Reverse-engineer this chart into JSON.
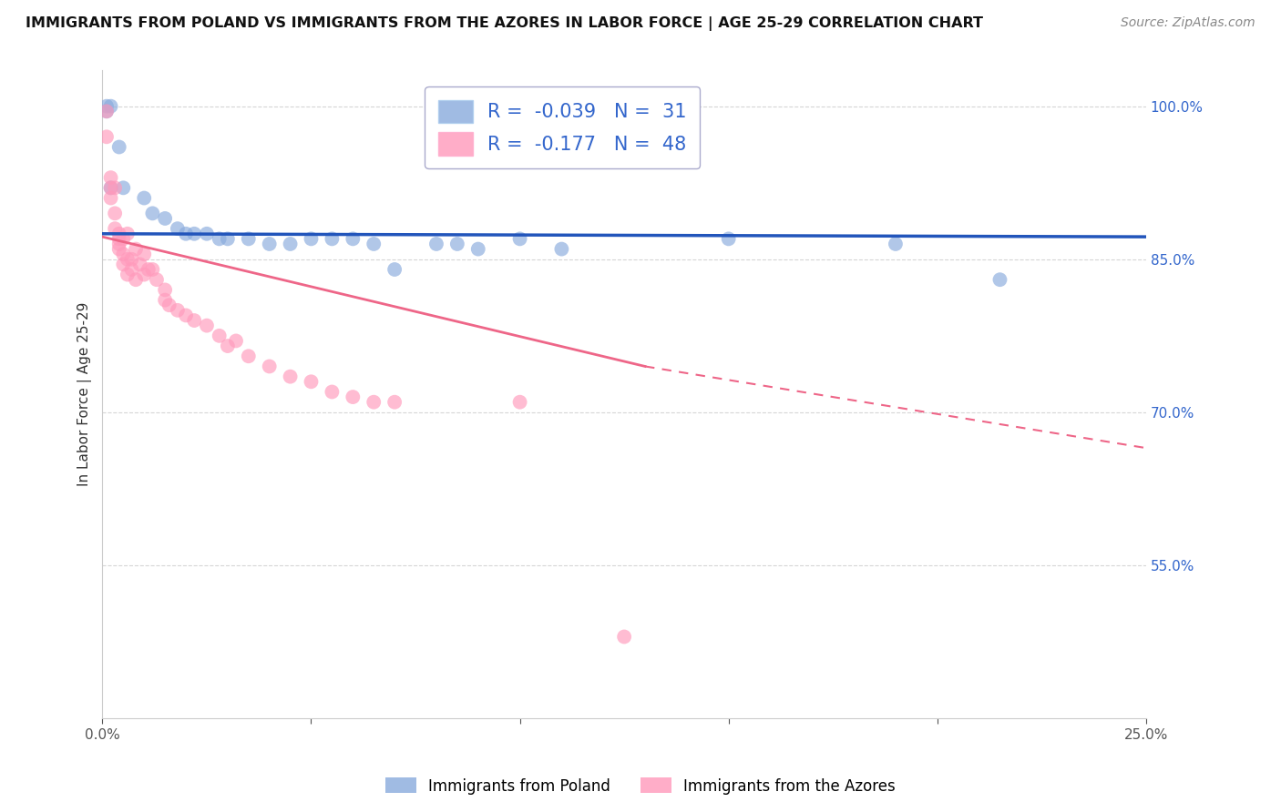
{
  "title": "IMMIGRANTS FROM POLAND VS IMMIGRANTS FROM THE AZORES IN LABOR FORCE | AGE 25-29 CORRELATION CHART",
  "source": "Source: ZipAtlas.com",
  "ylabel": "In Labor Force | Age 25-29",
  "xlim": [
    0.0,
    0.25
  ],
  "ylim": [
    0.4,
    1.035
  ],
  "xticks": [
    0.0,
    0.05,
    0.1,
    0.15,
    0.2,
    0.25
  ],
  "yticks": [
    0.55,
    0.7,
    0.85,
    1.0
  ],
  "ytick_labels": [
    "55.0%",
    "70.0%",
    "85.0%",
    "100.0%"
  ],
  "poland_color": "#88AADD",
  "azores_color": "#FF99BB",
  "poland_r": -0.039,
  "poland_n": 31,
  "azores_r": -0.177,
  "azores_n": 48,
  "poland_points": [
    [
      0.001,
      1.0
    ],
    [
      0.001,
      0.995
    ],
    [
      0.002,
      1.0
    ],
    [
      0.002,
      0.92
    ],
    [
      0.004,
      0.96
    ],
    [
      0.005,
      0.92
    ],
    [
      0.01,
      0.91
    ],
    [
      0.012,
      0.895
    ],
    [
      0.015,
      0.89
    ],
    [
      0.018,
      0.88
    ],
    [
      0.02,
      0.875
    ],
    [
      0.022,
      0.875
    ],
    [
      0.025,
      0.875
    ],
    [
      0.028,
      0.87
    ],
    [
      0.03,
      0.87
    ],
    [
      0.035,
      0.87
    ],
    [
      0.04,
      0.865
    ],
    [
      0.045,
      0.865
    ],
    [
      0.05,
      0.87
    ],
    [
      0.055,
      0.87
    ],
    [
      0.06,
      0.87
    ],
    [
      0.065,
      0.865
    ],
    [
      0.07,
      0.84
    ],
    [
      0.08,
      0.865
    ],
    [
      0.085,
      0.865
    ],
    [
      0.09,
      0.86
    ],
    [
      0.1,
      0.87
    ],
    [
      0.11,
      0.86
    ],
    [
      0.15,
      0.87
    ],
    [
      0.19,
      0.865
    ],
    [
      0.215,
      0.83
    ]
  ],
  "azores_points": [
    [
      0.001,
      0.995
    ],
    [
      0.001,
      0.97
    ],
    [
      0.002,
      0.93
    ],
    [
      0.002,
      0.92
    ],
    [
      0.002,
      0.91
    ],
    [
      0.003,
      0.92
    ],
    [
      0.003,
      0.895
    ],
    [
      0.003,
      0.88
    ],
    [
      0.004,
      0.875
    ],
    [
      0.004,
      0.87
    ],
    [
      0.004,
      0.865
    ],
    [
      0.004,
      0.86
    ],
    [
      0.005,
      0.87
    ],
    [
      0.005,
      0.855
    ],
    [
      0.005,
      0.845
    ],
    [
      0.006,
      0.875
    ],
    [
      0.006,
      0.85
    ],
    [
      0.006,
      0.835
    ],
    [
      0.007,
      0.85
    ],
    [
      0.007,
      0.84
    ],
    [
      0.008,
      0.86
    ],
    [
      0.008,
      0.83
    ],
    [
      0.009,
      0.845
    ],
    [
      0.01,
      0.855
    ],
    [
      0.01,
      0.835
    ],
    [
      0.011,
      0.84
    ],
    [
      0.012,
      0.84
    ],
    [
      0.013,
      0.83
    ],
    [
      0.015,
      0.82
    ],
    [
      0.015,
      0.81
    ],
    [
      0.016,
      0.805
    ],
    [
      0.018,
      0.8
    ],
    [
      0.02,
      0.795
    ],
    [
      0.022,
      0.79
    ],
    [
      0.025,
      0.785
    ],
    [
      0.028,
      0.775
    ],
    [
      0.03,
      0.765
    ],
    [
      0.032,
      0.77
    ],
    [
      0.035,
      0.755
    ],
    [
      0.04,
      0.745
    ],
    [
      0.045,
      0.735
    ],
    [
      0.05,
      0.73
    ],
    [
      0.055,
      0.72
    ],
    [
      0.06,
      0.715
    ],
    [
      0.065,
      0.71
    ],
    [
      0.07,
      0.71
    ],
    [
      0.1,
      0.71
    ],
    [
      0.125,
      0.48
    ]
  ],
  "background_color": "#FFFFFF",
  "grid_color": "#CCCCCC",
  "trend_blue_color": "#2255BB",
  "trend_pink_color": "#EE6688",
  "legend_border_color": "#AAAACC",
  "poland_trend": [
    0.0,
    0.25,
    0.875,
    0.872
  ],
  "azores_trend_solid": [
    0.0,
    0.13,
    0.872,
    0.745
  ],
  "azores_trend_dashed": [
    0.13,
    0.25,
    0.745,
    0.665
  ]
}
